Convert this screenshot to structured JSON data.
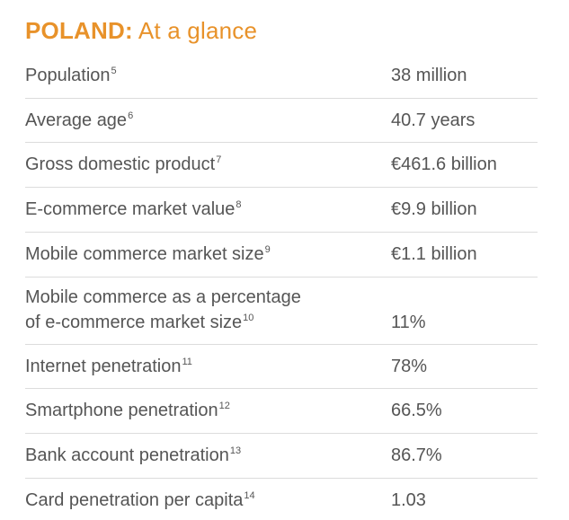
{
  "title": {
    "country": "POLAND:",
    "rest": " At a glance"
  },
  "rows": [
    {
      "label": "Population",
      "ref": "5",
      "value": "38 million"
    },
    {
      "label": "Average age",
      "ref": "6",
      "value": "40.7 years"
    },
    {
      "label": "Gross domestic product",
      "ref": "7",
      "value": "€461.6 billion"
    },
    {
      "label": "E-commerce market value",
      "ref": "8",
      "value": "€9.9 billion"
    },
    {
      "label": "Mobile commerce market size",
      "ref": "9",
      "value": "€1.1 billion"
    },
    {
      "label_line1": "Mobile commerce as a percentage",
      "label": "of e-commerce market size",
      "ref": "10",
      "value": "11%"
    },
    {
      "label": "Internet penetration",
      "ref": "11",
      "value": "78%"
    },
    {
      "label": "Smartphone penetration",
      "ref": "12",
      "value": "66.5%"
    },
    {
      "label": "Bank account penetration",
      "ref": "13",
      "value": "86.7%"
    },
    {
      "label": "Card penetration per capita",
      "ref": "14",
      "value": "1.03"
    }
  ],
  "colors": {
    "title": "#e8922a",
    "text": "#555555",
    "divider": "#dcdcdc"
  }
}
